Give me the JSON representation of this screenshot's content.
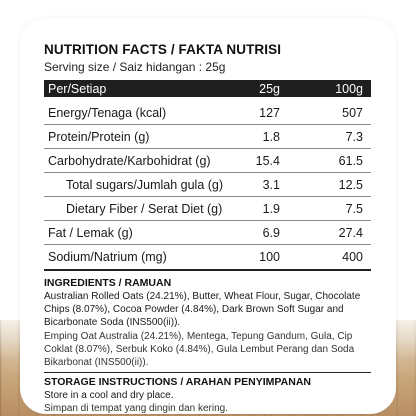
{
  "label": {
    "title": "NUTRITION FACTS / FAKTA NUTRISI",
    "serving": "Serving size / Saiz hidangan : 25g",
    "header": {
      "label": "Per/Setiap",
      "col1": "25g",
      "col2": "100g"
    },
    "rows": [
      {
        "label": "Energy/Tenaga (kcal)",
        "v25": "127",
        "v100": "507"
      },
      {
        "label": "Protein/Protein (g)",
        "v25": "1.8",
        "v100": "7.3"
      },
      {
        "label": "Carbohydrate/Karbohidrat (g)",
        "v25": "15.4",
        "v100": "61.5"
      },
      {
        "label": "Total sugars/Jumlah gula (g)",
        "v25": "3.1",
        "v100": "12.5"
      },
      {
        "label": "Dietary Fiber / Serat Diet (g)",
        "v25": "1.9",
        "v100": "7.5"
      },
      {
        "label": "Fat / Lemak (g)",
        "v25": "6.9",
        "v100": "27.4"
      },
      {
        "label": "Sodium/Natrium (mg)",
        "v25": "100",
        "v100": "400"
      }
    ],
    "ingredients": {
      "title": "INGREDIENTS / RAMUAN",
      "en": "Australian Rolled Oats (24.21%), Butter, Wheat Flour, Sugar, Chocolate Chips (8.07%), Cocoa Powder (4.84%), Dark Brown Soft Sugar and Bicarbonate Soda (INS500(ii)).",
      "ms": "Emping Oat Australia (24.21%), Mentega, Tepung Gandum, Gula, Cip Coklat (8.07%), Serbuk Koko (4.84%), Gula Lembut Perang dan Soda Bikarbonat (INS500(ii))."
    },
    "storage": {
      "title": "STORAGE INSTRUCTIONS / ARAHAN PENYIMPANAN",
      "en": "Store in a cool and dry place.",
      "ms": "Simpan di tempat yang dingin dan kering."
    }
  }
}
